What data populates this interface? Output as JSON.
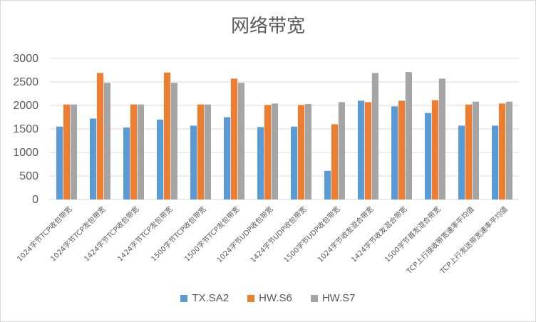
{
  "chart_data": {
    "type": "bar",
    "title": "网络带宽",
    "categories": [
      "1024字节TCP收包带宽",
      "1024字节TCP发包带宽",
      "1424字节TCP收包带宽",
      "1424字节TCP发包带宽",
      "1500字节TCP收包带宽",
      "1500字节TCP发包带宽",
      "1024字节UDP收包带宽",
      "1424字节UDP收包带宽",
      "1500字节UDP收包带宽",
      "1024字节收发混合带宽",
      "1424字节收发混合带宽",
      "1500字节首发混合带宽",
      "TCP上行接收带宽速率平均值",
      "TCP上行发送带宽速率平均值"
    ],
    "series": [
      {
        "name": "TX.SA2",
        "color": "#5b9bd5",
        "values": [
          1550,
          1720,
          1530,
          1700,
          1570,
          1750,
          1540,
          1550,
          610,
          2100,
          1980,
          1840,
          1570,
          1570
        ]
      },
      {
        "name": "HW.S6",
        "color": "#ed7d31",
        "values": [
          2020,
          2690,
          2020,
          2700,
          2020,
          2570,
          2010,
          2010,
          1600,
          2070,
          2100,
          2110,
          2020,
          2040
        ]
      },
      {
        "name": "HW.S7",
        "color": "#a5a5a5",
        "values": [
          2020,
          2480,
          2020,
          2480,
          2020,
          2480,
          2040,
          2030,
          2070,
          2690,
          2710,
          2570,
          2080,
          2080
        ]
      }
    ],
    "yticks": [
      0,
      500,
      1000,
      1500,
      2000,
      2500,
      3000
    ],
    "ylim": [
      0,
      3000
    ],
    "grid": true,
    "legend": "bottom"
  }
}
